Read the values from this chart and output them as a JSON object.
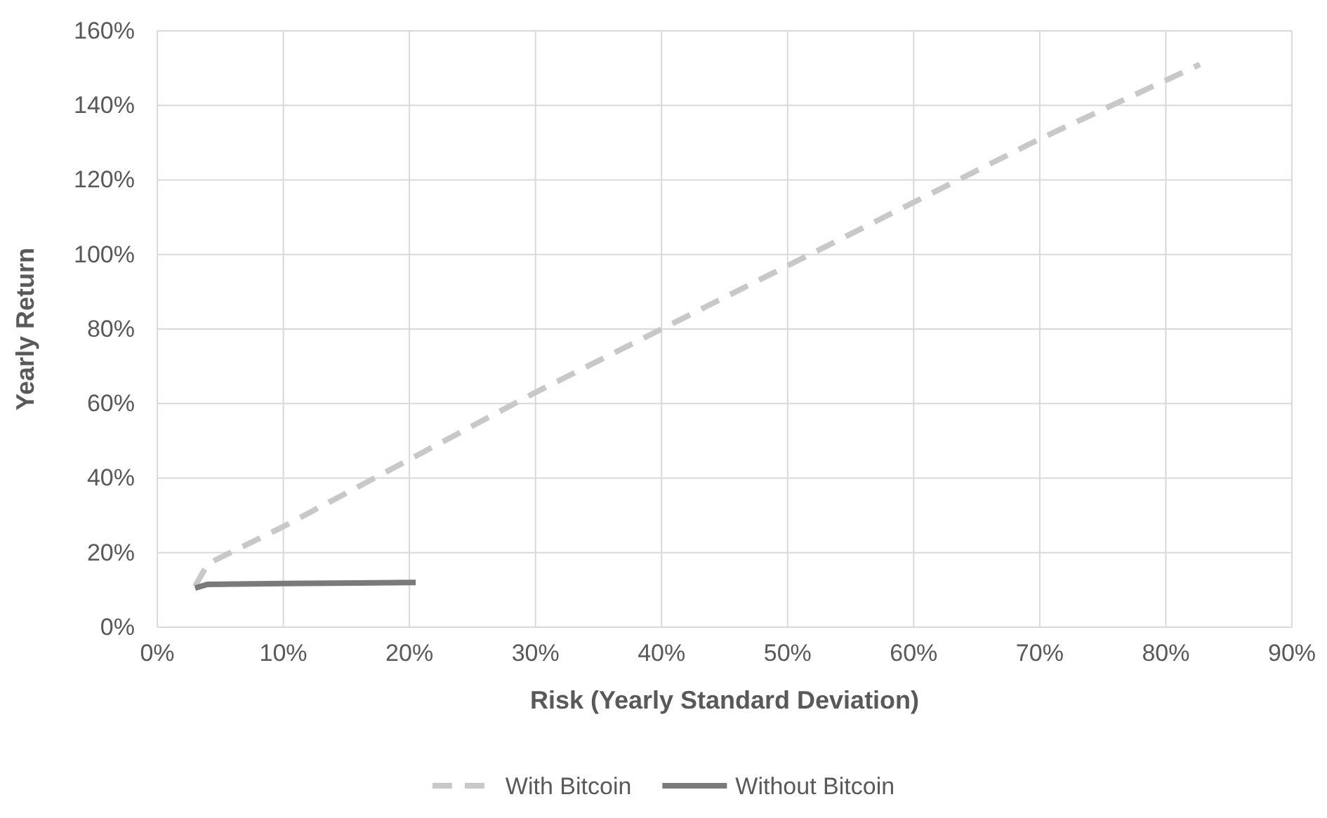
{
  "chart_data": {
    "type": "line",
    "xlabel": "Risk (Yearly Standard Deviation)",
    "ylabel": "Yearly Return",
    "xlim": [
      0,
      90
    ],
    "xticks": [
      {
        "value": 0,
        "label": "0%"
      },
      {
        "value": 10,
        "label": "10%"
      },
      {
        "value": 20,
        "label": "20%"
      },
      {
        "value": 30,
        "label": "30%"
      },
      {
        "value": 40,
        "label": "40%"
      },
      {
        "value": 50,
        "label": "50%"
      },
      {
        "value": 60,
        "label": "60%"
      },
      {
        "value": 70,
        "label": "70%"
      },
      {
        "value": 80,
        "label": "80%"
      },
      {
        "value": 90,
        "label": "90%"
      }
    ],
    "ylim": [
      0,
      160
    ],
    "yticks": [
      {
        "value": 0,
        "label": "0%"
      },
      {
        "value": 20,
        "label": "20%"
      },
      {
        "value": 40,
        "label": "40%"
      },
      {
        "value": 60,
        "label": "60%"
      },
      {
        "value": 80,
        "label": "80%"
      },
      {
        "value": 100,
        "label": "100%"
      },
      {
        "value": 120,
        "label": "120%"
      },
      {
        "value": 140,
        "label": "140%"
      },
      {
        "value": 160,
        "label": "160%"
      }
    ],
    "grid": true,
    "legend": "bottom",
    "marker": "none",
    "series": [
      {
        "name": "With Bitcoin",
        "color": "#c8c8c8",
        "line_style": "dashed",
        "x": [
          3,
          4,
          10,
          20,
          30,
          40,
          50,
          60,
          70,
          82.7
        ],
        "values": [
          11,
          17,
          27,
          45,
          63,
          80,
          97,
          114,
          131,
          151
        ]
      },
      {
        "name": "Without Bitcoin",
        "color": "#7a7a7a",
        "line_style": "solid",
        "x": [
          3,
          4,
          10,
          20.5
        ],
        "values": [
          10.5,
          11.5,
          11.7,
          12
        ]
      }
    ]
  }
}
